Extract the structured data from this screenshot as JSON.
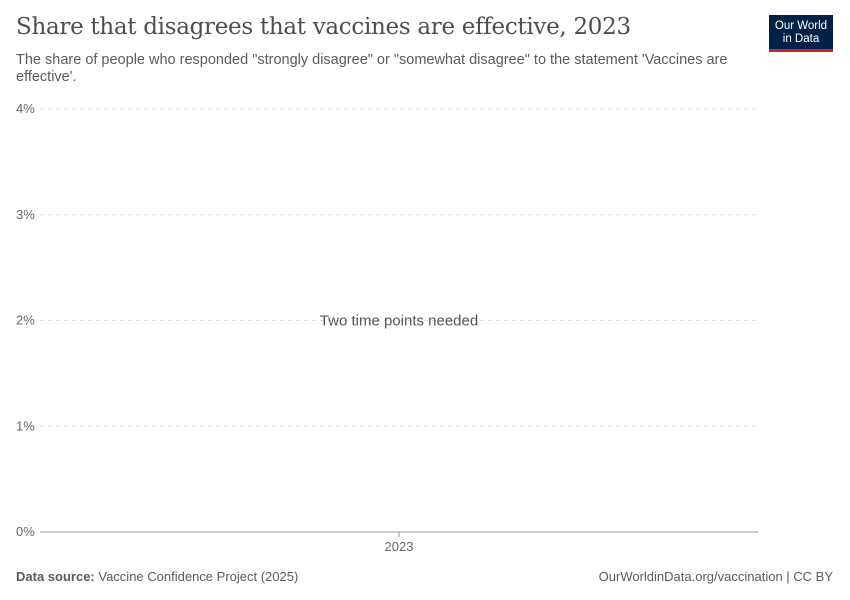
{
  "header": {
    "title": "Share that disagrees that vaccines are effective, 2023",
    "subtitle": "The share of people who responded \"strongly disagree\" or \"somewhat disagree\" to the statement 'Vaccines are effective'.",
    "logo": "Our World in Data"
  },
  "chart_data": {
    "type": "line",
    "title": "Share that disagrees that vaccines are effective, 2023",
    "x": [
      2023
    ],
    "series": [],
    "ylim": [
      0,
      4
    ],
    "yticks": [
      "0%",
      "1%",
      "2%",
      "3%",
      "4%"
    ],
    "xticks": [
      "2023"
    ],
    "grid": true,
    "message": "Two time points needed"
  },
  "footer": {
    "source_label": "Data source:",
    "source": "Vaccine Confidence Project (2025)",
    "link": "OurWorldinData.org/vaccination | CC BY"
  },
  "colors": {
    "logo_bg": "#002147",
    "logo_accent": "#ce261e"
  }
}
